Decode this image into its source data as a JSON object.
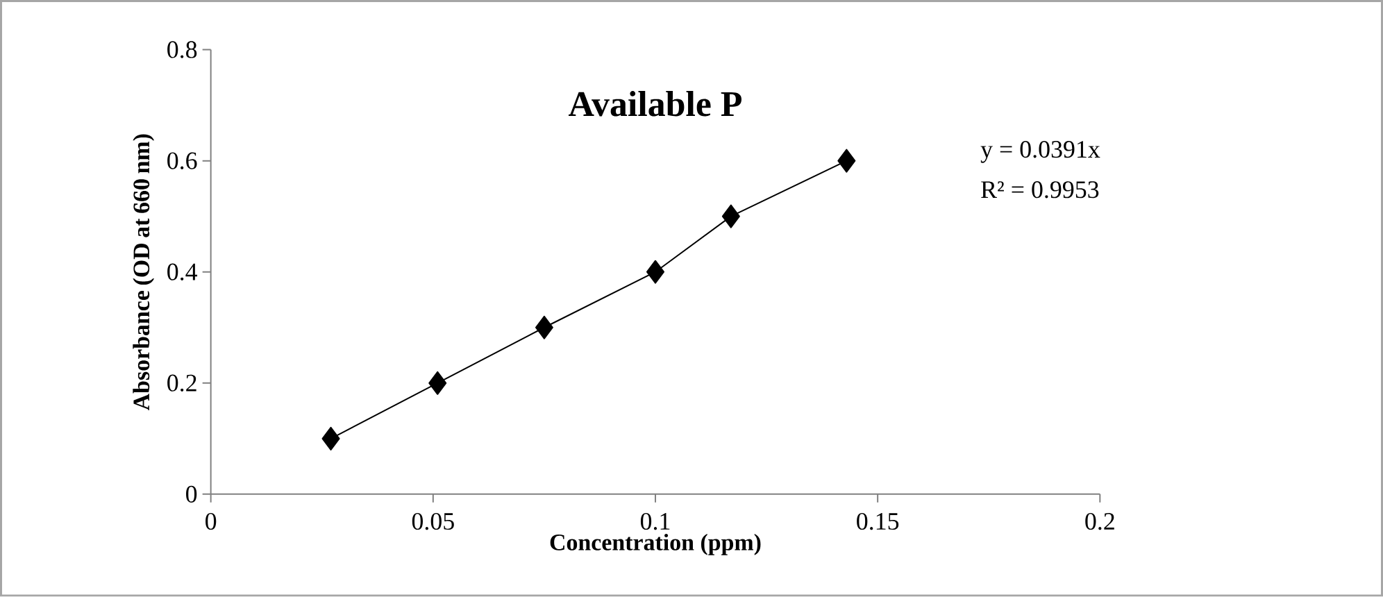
{
  "chart_data": {
    "type": "line",
    "title": "Available P",
    "xlabel": "Concentration (ppm)",
    "ylabel": "Absorbance (OD at 660 nm)",
    "x": [
      0.027,
      0.051,
      0.075,
      0.1,
      0.117,
      0.143
    ],
    "values": [
      0.1,
      0.2,
      0.3,
      0.4,
      0.5,
      0.6
    ],
    "color": "#000000",
    "marker": "diamond",
    "line_style": "solid",
    "grid": false,
    "xlim": [
      0,
      0.2
    ],
    "ylim": [
      0,
      0.8
    ],
    "xticks": [
      0,
      0.05,
      0.1,
      0.15,
      0.2
    ],
    "yticks": [
      0,
      0.2,
      0.4,
      0.6,
      0.8
    ],
    "annotations": [
      "y = 0.0391x",
      "R² = 0.9953"
    ]
  }
}
